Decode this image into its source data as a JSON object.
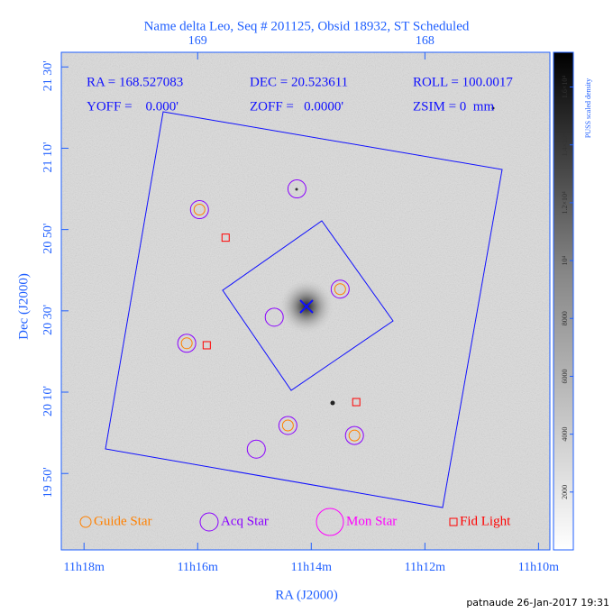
{
  "chart_data": {
    "type": "scatter",
    "title": "Name delta Leo, Seq # 201125, Obsid 18932, ST Scheduled",
    "header": [
      "RA = 168.527083",
      "DEC = 20.523611",
      "ROLL = 100.0017",
      "YOFF =    0.000'",
      "ZOFF =   0.0000'",
      "ZSIM = 0  mm"
    ],
    "x_label": "RA (J2000)",
    "y_label": "Dec (J2000)",
    "xlim": [
      169.6,
      167.45
    ],
    "xticks": [
      {
        "value": 169.5,
        "label": "11h18m"
      },
      {
        "value": 169,
        "label": "11h16m"
      },
      {
        "value": 168.5,
        "label": "11h14m"
      },
      {
        "value": 168,
        "label": "11h12m"
      },
      {
        "value": 167.5,
        "label": "11h10m"
      }
    ],
    "x2ticks": [
      169,
      168
    ],
    "ylim": [
      19.52,
      21.56
    ],
    "yticks": [
      {
        "value": 21.5,
        "label": "21 30'"
      },
      {
        "value": 21.1667,
        "label": "21 10'"
      },
      {
        "value": 20.8333,
        "label": "20 50'"
      },
      {
        "value": 20.5,
        "label": "20 30'"
      },
      {
        "value": 20.1667,
        "label": "20 10'"
      },
      {
        "value": 19.8333,
        "label": "19 50'"
      }
    ],
    "colorbar": {
      "label": "PUSS scaled density",
      "lim": [
        0,
        17200
      ],
      "ticks": [
        2000,
        4000,
        6000,
        8000,
        {
          "value": 10000,
          "label": "10⁴"
        },
        {
          "value": 12000,
          "label": "1.2×10⁴"
        },
        {
          "value": 14000,
          "label": "1.4×10⁴"
        },
        {
          "value": 16000,
          "label": "1.6×10⁴"
        }
      ]
    },
    "series": [
      {
        "name": "Guide Star",
        "color": "#ff8000",
        "marker": "circle",
        "x": [
          168.992,
          168.373,
          169.048,
          168.603,
          168.31
        ],
        "values": [
          20.915,
          20.589,
          20.367,
          20.03,
          19.989
        ]
      },
      {
        "name": "Acq Star",
        "color": "#8a00ff",
        "marker": "circle",
        "x": [
          168.992,
          168.563,
          168.373,
          168.663,
          169.048,
          168.603,
          168.31,
          168.742
        ],
        "values": [
          20.915,
          21.0,
          20.589,
          20.474,
          20.367,
          20.03,
          19.989,
          19.933
        ]
      },
      {
        "name": "Mon Star",
        "color": "#ff00ff",
        "marker": "circle",
        "x": [],
        "values": []
      },
      {
        "name": "Fid Light",
        "color": "#ff0000",
        "marker": "square",
        "x": [
          168.877,
          168.96,
          168.302
        ],
        "values": [
          20.8,
          20.359,
          20.126
        ]
      }
    ],
    "footer": "patnaude 26-Jan-2017 19:31"
  }
}
